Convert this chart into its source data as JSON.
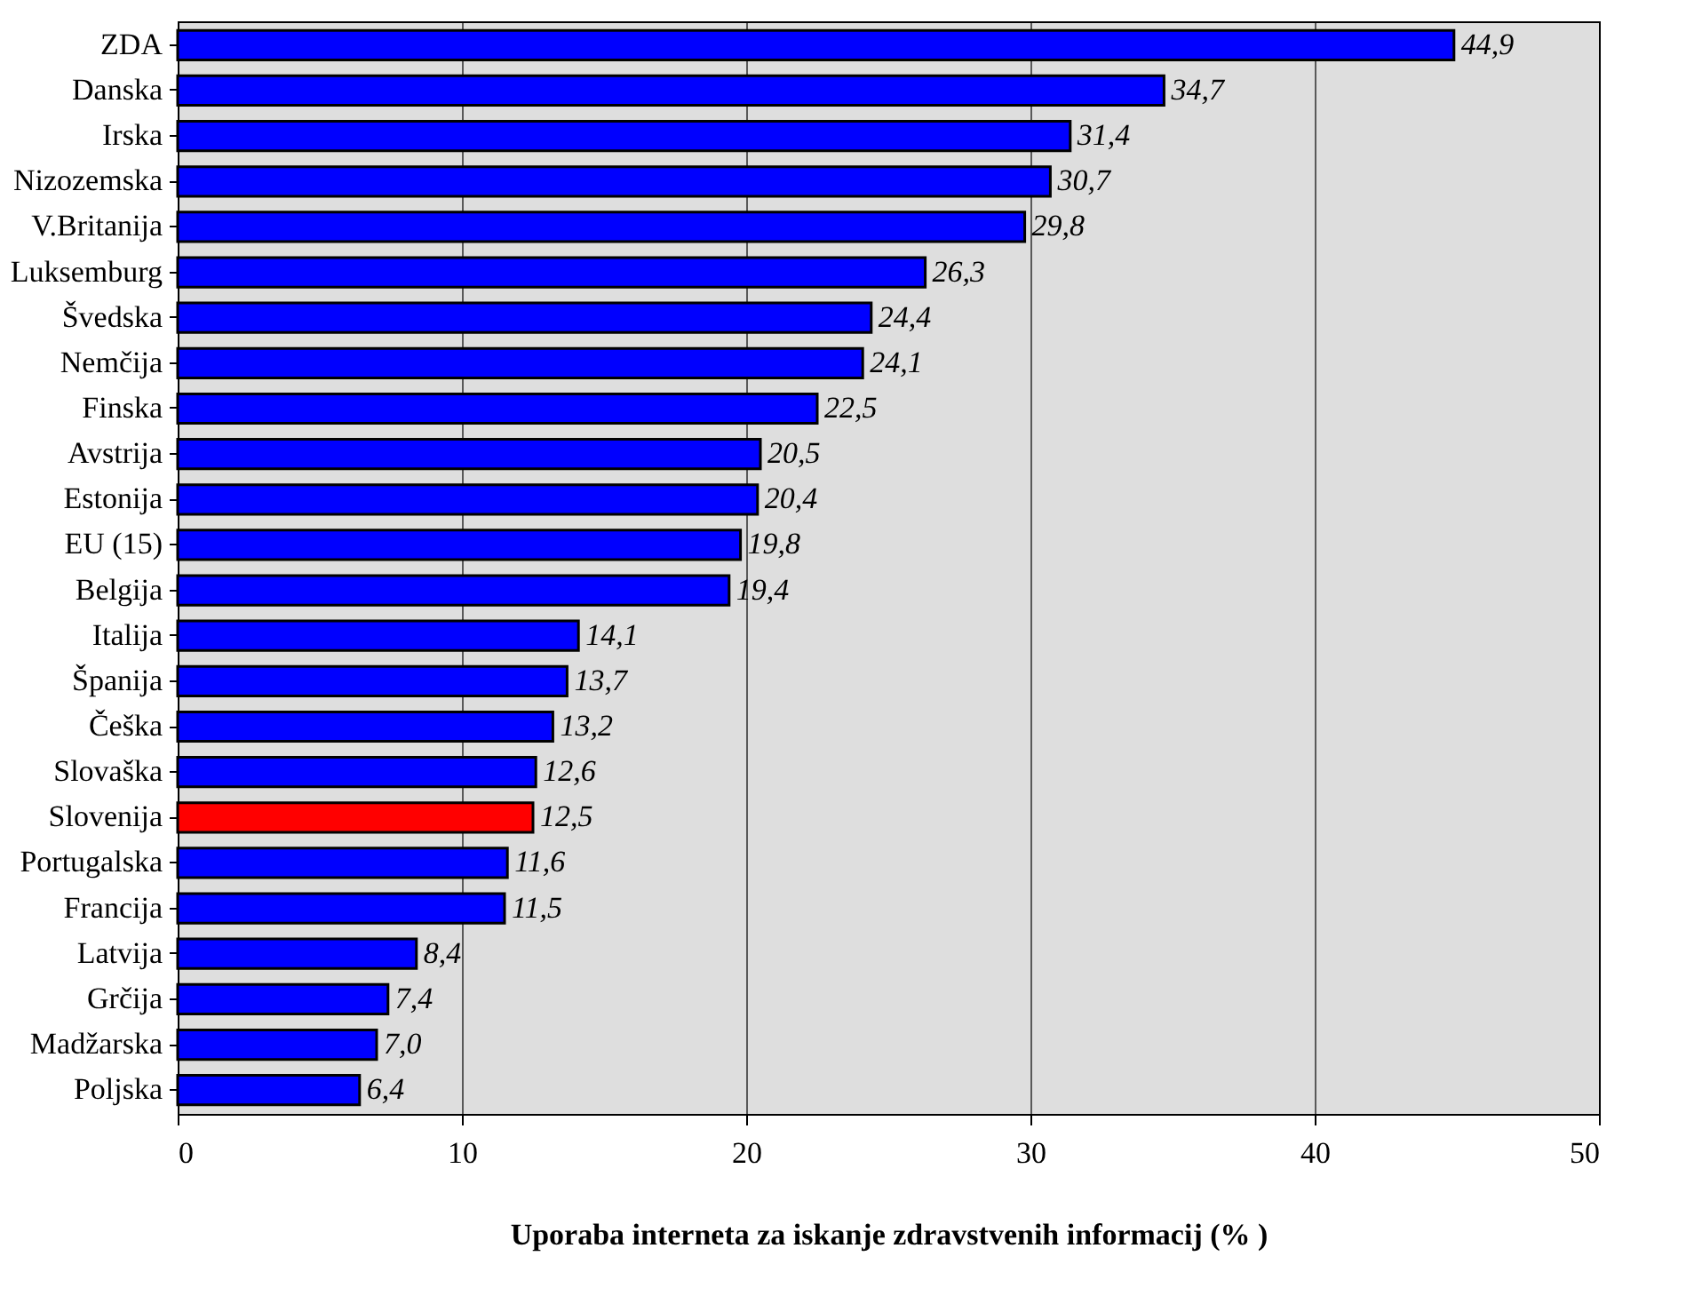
{
  "chart_data": {
    "type": "bar",
    "orientation": "horizontal",
    "xlabel": "Uporaba interneta za iskanje zdravstvenih informacij (% )",
    "categories": [
      "ZDA",
      "Danska",
      "Irska",
      "Nizozemska",
      "V.Britanija",
      "Luksemburg",
      "Švedska",
      "Nemčija",
      "Finska",
      "Avstrija",
      "Estonija",
      "EU (15)",
      "Belgija",
      "Italija",
      "Španija",
      "Češka",
      "Slovaška",
      "Slovenija",
      "Portugalska",
      "Francija",
      "Latvija",
      "Grčija",
      "Madžarska",
      "Poljska"
    ],
    "values": [
      44.9,
      34.7,
      31.4,
      30.7,
      29.8,
      26.3,
      24.4,
      24.1,
      22.5,
      20.5,
      20.4,
      19.8,
      19.4,
      14.1,
      13.7,
      13.2,
      12.6,
      12.5,
      11.6,
      11.5,
      8.4,
      7.4,
      7.0,
      6.4
    ],
    "value_labels": [
      "44,9",
      "34,7",
      "31,4",
      "30,7",
      "29,8",
      "26,3",
      "24,4",
      "24,1",
      "22,5",
      "20,5",
      "20,4",
      "19,8",
      "19,4",
      "14,1",
      "13,7",
      "13,2",
      "12,6",
      "12,5",
      "11,6",
      "11,5",
      "8,4",
      "7,4",
      "7,0",
      "6,4"
    ],
    "colors": [
      "#0000ff",
      "#0000ff",
      "#0000ff",
      "#0000ff",
      "#0000ff",
      "#0000ff",
      "#0000ff",
      "#0000ff",
      "#0000ff",
      "#0000ff",
      "#0000ff",
      "#0000ff",
      "#0000ff",
      "#0000ff",
      "#0000ff",
      "#0000ff",
      "#0000ff",
      "#ff0000",
      "#0000ff",
      "#0000ff",
      "#0000ff",
      "#0000ff",
      "#0000ff",
      "#0000ff"
    ],
    "xlim": [
      0,
      50
    ],
    "xticks": [
      0,
      10,
      20,
      30,
      40,
      50
    ],
    "grid": "x"
  }
}
